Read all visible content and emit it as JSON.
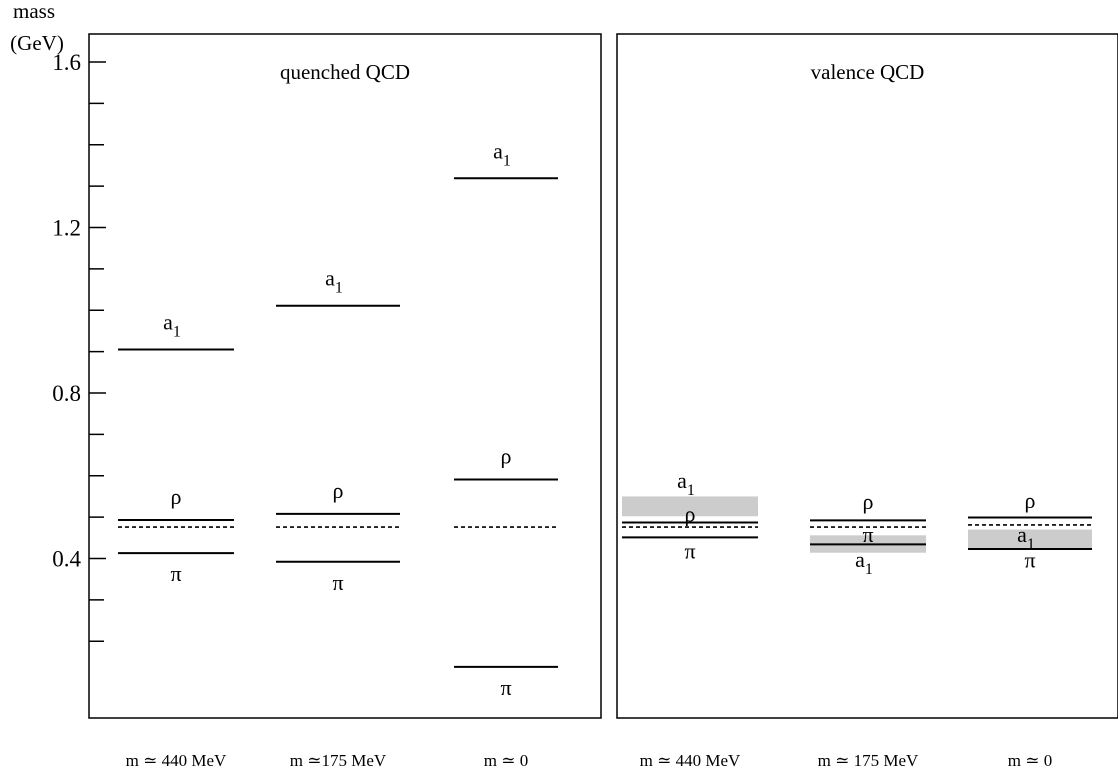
{
  "chart_data": {
    "type": "level-diagram",
    "y_axis": {
      "label_line1": "mass",
      "label_line2": "(GeV)",
      "range": [
        0.0,
        1.65
      ],
      "ticks": [
        0.4,
        0.8,
        1.2,
        1.6
      ],
      "tick_labels": [
        "0.4",
        "0.8",
        "1.2",
        "1.6"
      ],
      "minor_ticks": [
        0.2,
        0.3,
        0.5,
        0.6,
        0.7,
        0.9,
        1.0,
        1.1,
        1.3,
        1.4,
        1.5
      ]
    },
    "panels": [
      {
        "title": "quenched QCD",
        "columns": [
          {
            "label": "m ≃ 440 MeV",
            "levels": [
              {
                "name": "a1",
                "mass": 0.905,
                "style": "solid",
                "label_pos": "above"
              },
              {
                "name": "ρ",
                "mass": 0.493,
                "style": "solid",
                "label_pos": "above"
              },
              {
                "name": "",
                "mass": 0.476,
                "style": "dashed"
              },
              {
                "name": "π",
                "mass": 0.413,
                "style": "solid",
                "label_pos": "below"
              }
            ]
          },
          {
            "label": "m ≃175 MeV",
            "levels": [
              {
                "name": "a1",
                "mass": 1.011,
                "style": "solid",
                "label_pos": "above"
              },
              {
                "name": "ρ",
                "mass": 0.508,
                "style": "solid",
                "label_pos": "above"
              },
              {
                "name": "",
                "mass": 0.476,
                "style": "dashed"
              },
              {
                "name": "π",
                "mass": 0.392,
                "style": "solid",
                "label_pos": "below"
              }
            ]
          },
          {
            "label": "m ≃ 0",
            "levels": [
              {
                "name": "a1",
                "mass": 1.319,
                "style": "solid",
                "label_pos": "above"
              },
              {
                "name": "ρ",
                "mass": 0.591,
                "style": "solid",
                "label_pos": "above"
              },
              {
                "name": "",
                "mass": 0.476,
                "style": "dashed"
              },
              {
                "name": "π",
                "mass": 0.138,
                "style": "solid",
                "label_pos": "below"
              }
            ]
          }
        ]
      },
      {
        "title": "valence QCD",
        "columns": [
          {
            "label": "m ≃ 440 MeV",
            "band": {
              "name": "a1",
              "low": 0.502,
              "high": 0.55
            },
            "levels": [
              {
                "name": "ρ",
                "mass": 0.487,
                "style": "solid"
              },
              {
                "name": "",
                "mass": 0.476,
                "style": "dashed"
              },
              {
                "name": "π",
                "mass": 0.451,
                "style": "solid"
              }
            ],
            "labels": [
              {
                "text": "a",
                "sub": "1",
                "mass": 0.57,
                "anchor_mass": "above-band"
              },
              {
                "text": "ρ",
                "sub": "",
                "mass": 0.49
              },
              {
                "text": "π",
                "sub": "",
                "mass": 0.4
              }
            ]
          },
          {
            "label": "m ≃ 175 MeV",
            "band": {
              "name": "a1",
              "low": 0.414,
              "high": 0.456
            },
            "levels": [
              {
                "name": "ρ",
                "mass": 0.492,
                "style": "solid"
              },
              {
                "name": "",
                "mass": 0.476,
                "style": "dashed"
              },
              {
                "name": "a1",
                "mass": 0.434,
                "style": "solid"
              }
            ],
            "labels": [
              {
                "text": "ρ",
                "sub": "",
                "mass": 0.52
              },
              {
                "text": "π",
                "sub": "",
                "mass": 0.44
              },
              {
                "text": "a",
                "sub": "1",
                "mass": 0.38
              }
            ]
          },
          {
            "label": "m ≃ 0",
            "band": {
              "name": "a1",
              "low": 0.423,
              "high": 0.47
            },
            "levels": [
              {
                "name": "ρ",
                "mass": 0.499,
                "style": "solid"
              },
              {
                "name": "",
                "mass": 0.481,
                "style": "dashed"
              },
              {
                "name": "π",
                "mass": 0.423,
                "style": "solid"
              }
            ],
            "labels": [
              {
                "text": "ρ",
                "sub": "",
                "mass": 0.522
              },
              {
                "text": "a",
                "sub": "1",
                "mass": 0.44
              },
              {
                "text": "π",
                "sub": "",
                "mass": 0.378
              }
            ]
          }
        ]
      }
    ],
    "colors": {
      "band": "#cccccc",
      "line": "#000000"
    },
    "grid": false
  }
}
